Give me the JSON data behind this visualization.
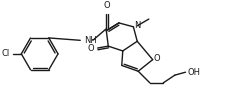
{
  "bg_color": "#ffffff",
  "line_color": "#1a1a1a",
  "lw": 1.0,
  "figsize": [
    2.45,
    1.06
  ],
  "dpi": 100,
  "xlim": [
    0,
    245
  ],
  "ylim": [
    0,
    106
  ]
}
